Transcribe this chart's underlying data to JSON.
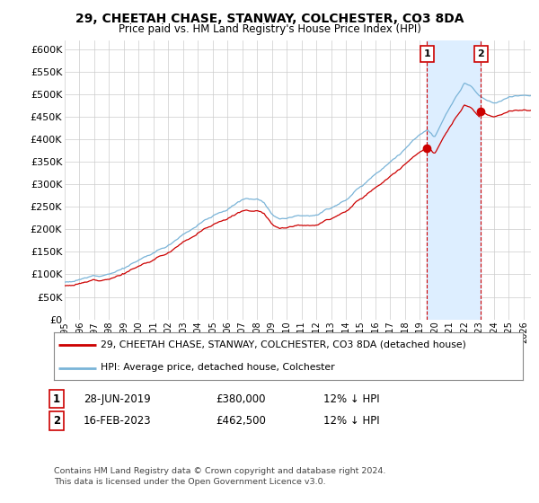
{
  "title": "29, CHEETAH CHASE, STANWAY, COLCHESTER, CO3 8DA",
  "subtitle": "Price paid vs. HM Land Registry's House Price Index (HPI)",
  "ylim": [
    0,
    620000
  ],
  "ytick_vals": [
    0,
    50000,
    100000,
    150000,
    200000,
    250000,
    300000,
    350000,
    400000,
    450000,
    500000,
    550000,
    600000
  ],
  "hpi_color": "#7ab4d8",
  "price_color": "#cc0000",
  "marker1_t": 2019.487,
  "marker1_price": 380000,
  "marker1_date": "28-JUN-2019",
  "marker1_hpi_pct": "12% ↓ HPI",
  "marker2_t": 2023.12,
  "marker2_price": 462500,
  "marker2_date": "16-FEB-2023",
  "marker2_hpi_pct": "12% ↓ HPI",
  "legend_line1": "29, CHEETAH CHASE, STANWAY, COLCHESTER, CO3 8DA (detached house)",
  "legend_line2": "HPI: Average price, detached house, Colchester",
  "footer": "Contains HM Land Registry data © Crown copyright and database right 2024.\nThis data is licensed under the Open Government Licence v3.0.",
  "shade_color": "#ddeeff",
  "background_color": "#ffffff",
  "grid_color": "#cccccc"
}
